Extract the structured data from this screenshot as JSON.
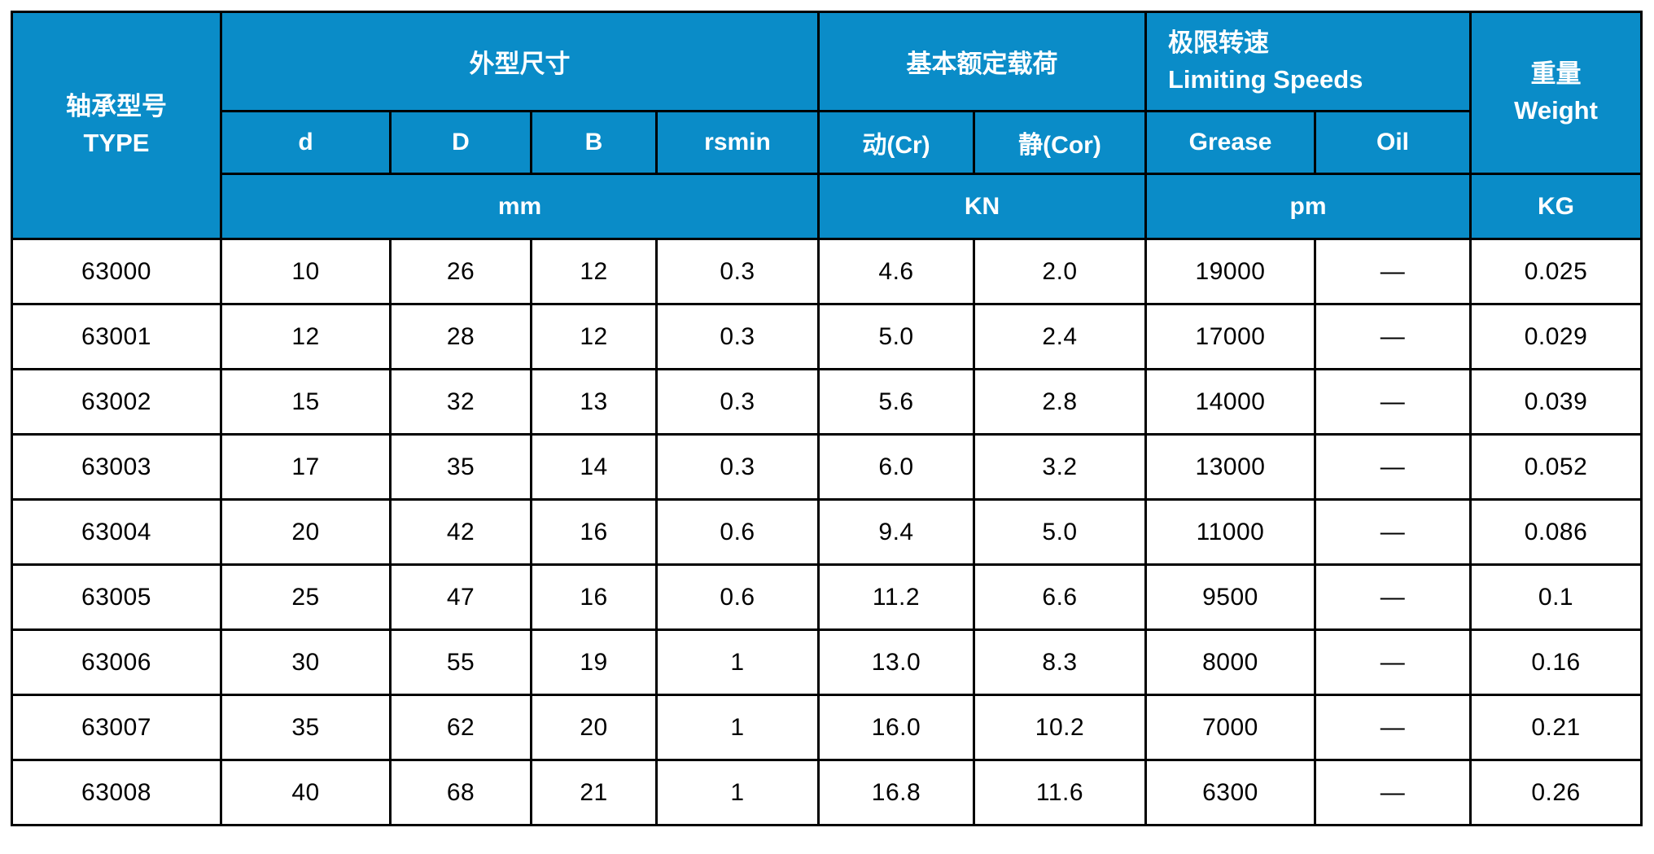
{
  "colors": {
    "header_bg": "#0a8cc8",
    "header_text": "#ffffff",
    "border": "#000000",
    "row_bg": "#ffffff",
    "text": "#000000"
  },
  "chart_data": {
    "type": "table",
    "header": {
      "type_label": "轴承型号\nTYPE",
      "groups": [
        {
          "label": "外型尺寸",
          "columns": [
            "d",
            "D",
            "B",
            "rsmin"
          ],
          "unit": "mm"
        },
        {
          "label": "基本额定载荷",
          "columns": [
            "动(Cr)",
            "静(Cor)"
          ],
          "unit": "KN"
        },
        {
          "label": "极限转速\nLimiting Speeds",
          "columns": [
            "Grease",
            "Oil"
          ],
          "unit": "pm"
        }
      ],
      "weight_label": "重量\nWeight",
      "weight_unit": "KG"
    },
    "column_keys": [
      "type",
      "d",
      "D",
      "B",
      "rsmin",
      "cr-dynamic",
      "cor-static",
      "grease",
      "oil",
      "weight"
    ],
    "rows": [
      [
        "63000",
        "10",
        "26",
        "12",
        "0.3",
        "4.6",
        "2.0",
        "19000",
        "—",
        "0.025"
      ],
      [
        "63001",
        "12",
        "28",
        "12",
        "0.3",
        "5.0",
        "2.4",
        "17000",
        "—",
        "0.029"
      ],
      [
        "63002",
        "15",
        "32",
        "13",
        "0.3",
        "5.6",
        "2.8",
        "14000",
        "—",
        "0.039"
      ],
      [
        "63003",
        "17",
        "35",
        "14",
        "0.3",
        "6.0",
        "3.2",
        "13000",
        "—",
        "0.052"
      ],
      [
        "63004",
        "20",
        "42",
        "16",
        "0.6",
        "9.4",
        "5.0",
        "11000",
        "—",
        "0.086"
      ],
      [
        "63005",
        "25",
        "47",
        "16",
        "0.6",
        "11.2",
        "6.6",
        "9500",
        "—",
        "0.1"
      ],
      [
        "63006",
        "30",
        "55",
        "19",
        "1",
        "13.0",
        "8.3",
        "8000",
        "—",
        "0.16"
      ],
      [
        "63007",
        "35",
        "62",
        "20",
        "1",
        "16.0",
        "10.2",
        "7000",
        "—",
        "0.21"
      ],
      [
        "63008",
        "40",
        "68",
        "21",
        "1",
        "16.8",
        "11.6",
        "6300",
        "—",
        "0.26"
      ]
    ]
  }
}
